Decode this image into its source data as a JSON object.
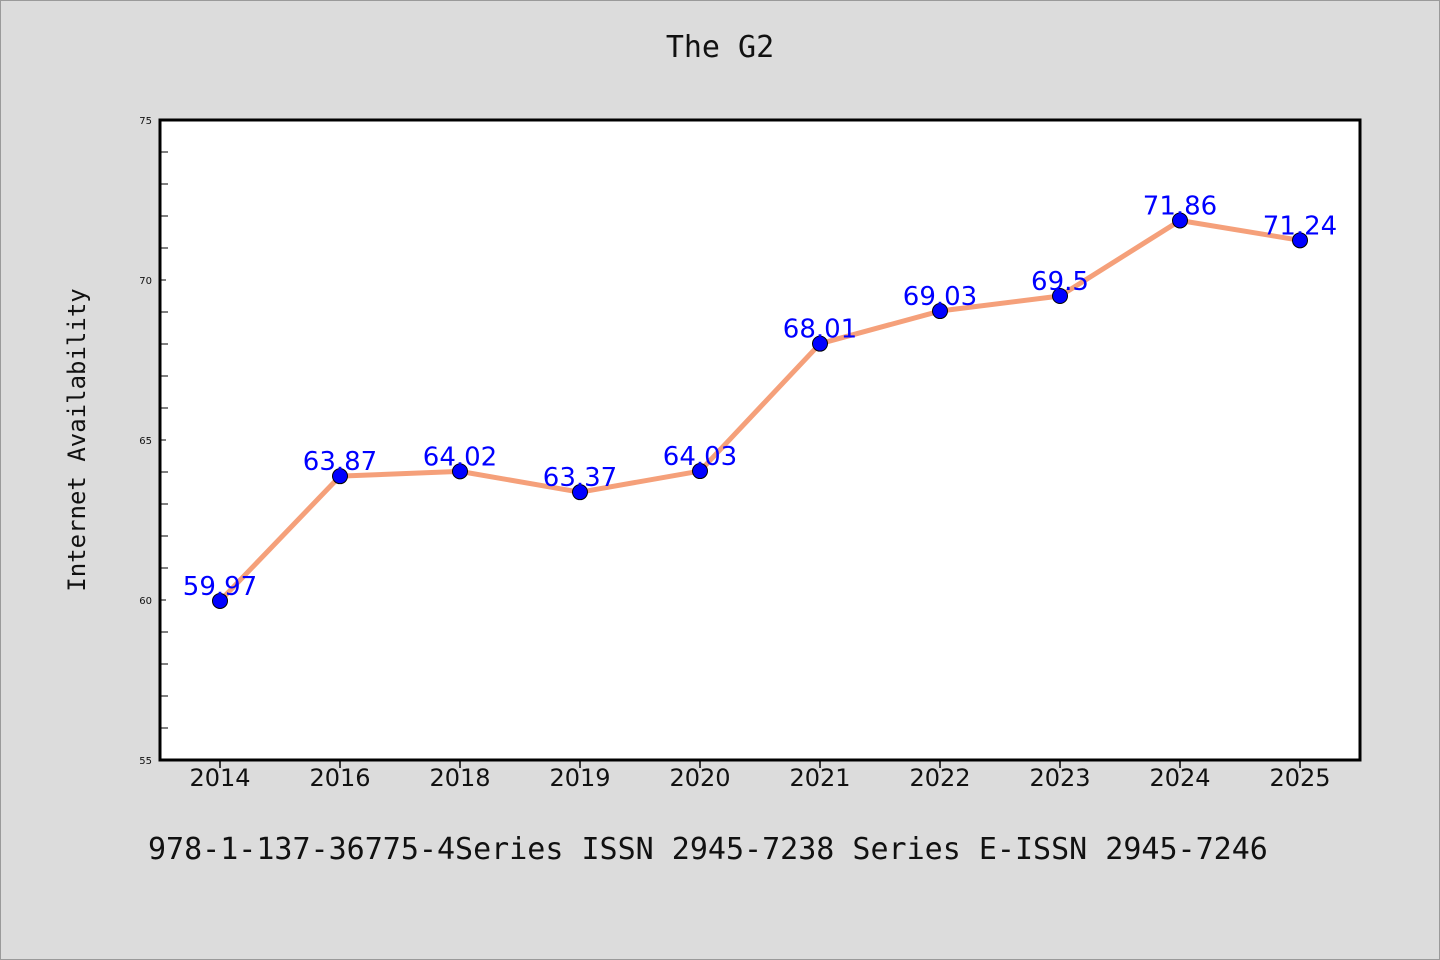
{
  "chart_data": {
    "type": "line",
    "title": "The G2",
    "ylabel": "Internet Availability",
    "xlabel": "",
    "categories": [
      "2014",
      "2016",
      "2018",
      "2019",
      "2020",
      "2021",
      "2022",
      "2023",
      "2024",
      "2025"
    ],
    "series": [
      {
        "values": [
          59.97,
          63.87,
          64.02,
          63.37,
          64.03,
          68.01,
          69.03,
          69.5,
          71.86,
          71.24
        ],
        "labels": [
          "59.97",
          "63.87",
          "64.02",
          "63.37",
          "64.03",
          "68.01",
          "69.03",
          "69.5",
          "71.86",
          "71.24"
        ],
        "line_color": "#f5a07a",
        "marker_color": "#0000ff",
        "label_color": "#0000ff"
      }
    ],
    "ylim": [
      55,
      75
    ],
    "yticks": [
      "55",
      "60",
      "65",
      "70",
      "75"
    ],
    "grid": false,
    "legend": "none"
  },
  "footer": {
    "caption": "978-1-137-36775-4Series ISSN 2945-7238 Series E-ISSN 2945-7246"
  },
  "colors": {
    "background": "#dcdcdc",
    "plot_background": "#ffffff"
  }
}
